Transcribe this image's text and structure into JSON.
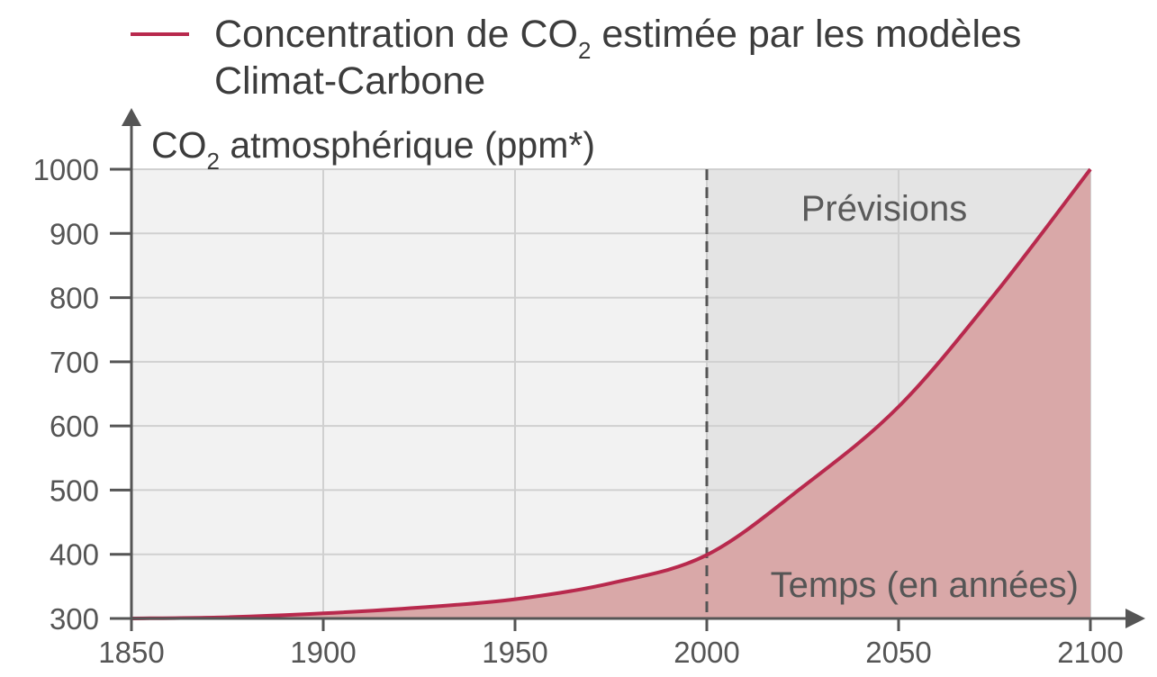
{
  "chart_data": {
    "type": "area",
    "legend": {
      "line1_before": "Concentration de CO",
      "line1_sub": "2",
      "line1_after": " estimée par les modèles",
      "line2": "Climat-Carbone"
    },
    "ylabel": {
      "main": "CO",
      "sub": "2",
      "rest": " atmosphérique (ppm*)"
    },
    "xlabel": "Temps (en années)",
    "region_label": "Prévisions",
    "xlim": [
      1850,
      2100
    ],
    "ylim": [
      300,
      1000
    ],
    "x_ticks": [
      "1850",
      "1900",
      "1950",
      "2000",
      "2050",
      "2100"
    ],
    "y_ticks": [
      "300",
      "400",
      "500",
      "600",
      "700",
      "800",
      "900",
      "1000"
    ],
    "forecast_start": 2000,
    "grid": true,
    "series": [
      {
        "name": "Concentration de CO2 estimée par les modèles Climat-Carbone",
        "x": [
          1850,
          1875,
          1900,
          1925,
          1950,
          1975,
          2000,
          2025,
          2050,
          2075,
          2100
        ],
        "y": [
          300,
          302,
          308,
          317,
          330,
          355,
          399,
          505,
          630,
          805,
          1000
        ]
      }
    ],
    "colors": {
      "line": "#b8294d",
      "fill": "#d9a8a8",
      "history_bg": "#f2f2f2",
      "forecast_bg": "#e4e4e4",
      "grid": "#d0d0d0",
      "axis": "#555555"
    }
  }
}
